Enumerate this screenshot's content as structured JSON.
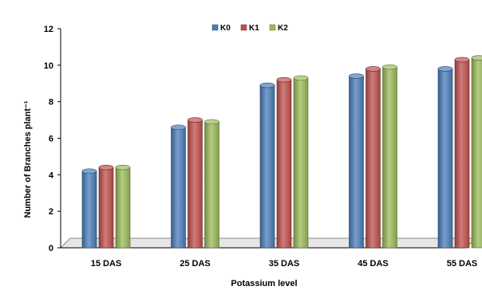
{
  "chart_data": {
    "type": "bar",
    "title": "",
    "xlabel": "Potassium level",
    "ylabel": "Number of Branches plant⁻¹",
    "ylim": [
      0,
      12
    ],
    "yticks": [
      0,
      2,
      4,
      6,
      8,
      10,
      12
    ],
    "grid": false,
    "legend_position": "top-center",
    "categories": [
      "15 DAS",
      "25 DAS",
      "35 DAS",
      "45 DAS",
      "55 DAS"
    ],
    "series": [
      {
        "name": "K0",
        "color": "#4a7ebb",
        "values": [
          4.2,
          6.6,
          8.9,
          9.4,
          9.8
        ]
      },
      {
        "name": "K1",
        "color": "#c0504d",
        "values": [
          4.4,
          7.0,
          9.2,
          9.8,
          10.3
        ]
      },
      {
        "name": "K2",
        "color": "#9bbb59",
        "values": [
          4.4,
          6.9,
          9.3,
          9.9,
          10.4
        ]
      }
    ]
  }
}
